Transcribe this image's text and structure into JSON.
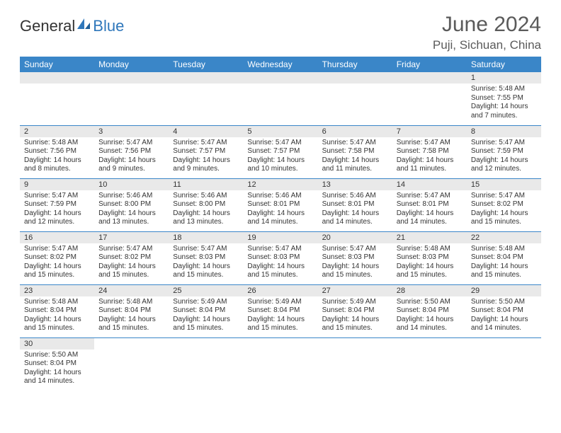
{
  "brand": {
    "part1": "General",
    "part2": "Blue"
  },
  "title": "June 2024",
  "location": "Puji, Sichuan, China",
  "colors": {
    "header_bg": "#3a86c8",
    "row_divider": "#3a86c8",
    "daynum_bg": "#e9e9e9"
  },
  "day_headers": [
    "Sunday",
    "Monday",
    "Tuesday",
    "Wednesday",
    "Thursday",
    "Friday",
    "Saturday"
  ],
  "weeks": [
    [
      {
        "day": "",
        "sunrise": "",
        "sunset": "",
        "daylight": ""
      },
      {
        "day": "",
        "sunrise": "",
        "sunset": "",
        "daylight": ""
      },
      {
        "day": "",
        "sunrise": "",
        "sunset": "",
        "daylight": ""
      },
      {
        "day": "",
        "sunrise": "",
        "sunset": "",
        "daylight": ""
      },
      {
        "day": "",
        "sunrise": "",
        "sunset": "",
        "daylight": ""
      },
      {
        "day": "",
        "sunrise": "",
        "sunset": "",
        "daylight": ""
      },
      {
        "day": "1",
        "sunrise": "Sunrise: 5:48 AM",
        "sunset": "Sunset: 7:55 PM",
        "daylight": "Daylight: 14 hours and 7 minutes."
      }
    ],
    [
      {
        "day": "2",
        "sunrise": "Sunrise: 5:48 AM",
        "sunset": "Sunset: 7:56 PM",
        "daylight": "Daylight: 14 hours and 8 minutes."
      },
      {
        "day": "3",
        "sunrise": "Sunrise: 5:47 AM",
        "sunset": "Sunset: 7:56 PM",
        "daylight": "Daylight: 14 hours and 9 minutes."
      },
      {
        "day": "4",
        "sunrise": "Sunrise: 5:47 AM",
        "sunset": "Sunset: 7:57 PM",
        "daylight": "Daylight: 14 hours and 9 minutes."
      },
      {
        "day": "5",
        "sunrise": "Sunrise: 5:47 AM",
        "sunset": "Sunset: 7:57 PM",
        "daylight": "Daylight: 14 hours and 10 minutes."
      },
      {
        "day": "6",
        "sunrise": "Sunrise: 5:47 AM",
        "sunset": "Sunset: 7:58 PM",
        "daylight": "Daylight: 14 hours and 11 minutes."
      },
      {
        "day": "7",
        "sunrise": "Sunrise: 5:47 AM",
        "sunset": "Sunset: 7:58 PM",
        "daylight": "Daylight: 14 hours and 11 minutes."
      },
      {
        "day": "8",
        "sunrise": "Sunrise: 5:47 AM",
        "sunset": "Sunset: 7:59 PM",
        "daylight": "Daylight: 14 hours and 12 minutes."
      }
    ],
    [
      {
        "day": "9",
        "sunrise": "Sunrise: 5:47 AM",
        "sunset": "Sunset: 7:59 PM",
        "daylight": "Daylight: 14 hours and 12 minutes."
      },
      {
        "day": "10",
        "sunrise": "Sunrise: 5:46 AM",
        "sunset": "Sunset: 8:00 PM",
        "daylight": "Daylight: 14 hours and 13 minutes."
      },
      {
        "day": "11",
        "sunrise": "Sunrise: 5:46 AM",
        "sunset": "Sunset: 8:00 PM",
        "daylight": "Daylight: 14 hours and 13 minutes."
      },
      {
        "day": "12",
        "sunrise": "Sunrise: 5:46 AM",
        "sunset": "Sunset: 8:01 PM",
        "daylight": "Daylight: 14 hours and 14 minutes."
      },
      {
        "day": "13",
        "sunrise": "Sunrise: 5:46 AM",
        "sunset": "Sunset: 8:01 PM",
        "daylight": "Daylight: 14 hours and 14 minutes."
      },
      {
        "day": "14",
        "sunrise": "Sunrise: 5:47 AM",
        "sunset": "Sunset: 8:01 PM",
        "daylight": "Daylight: 14 hours and 14 minutes."
      },
      {
        "day": "15",
        "sunrise": "Sunrise: 5:47 AM",
        "sunset": "Sunset: 8:02 PM",
        "daylight": "Daylight: 14 hours and 15 minutes."
      }
    ],
    [
      {
        "day": "16",
        "sunrise": "Sunrise: 5:47 AM",
        "sunset": "Sunset: 8:02 PM",
        "daylight": "Daylight: 14 hours and 15 minutes."
      },
      {
        "day": "17",
        "sunrise": "Sunrise: 5:47 AM",
        "sunset": "Sunset: 8:02 PM",
        "daylight": "Daylight: 14 hours and 15 minutes."
      },
      {
        "day": "18",
        "sunrise": "Sunrise: 5:47 AM",
        "sunset": "Sunset: 8:03 PM",
        "daylight": "Daylight: 14 hours and 15 minutes."
      },
      {
        "day": "19",
        "sunrise": "Sunrise: 5:47 AM",
        "sunset": "Sunset: 8:03 PM",
        "daylight": "Daylight: 14 hours and 15 minutes."
      },
      {
        "day": "20",
        "sunrise": "Sunrise: 5:47 AM",
        "sunset": "Sunset: 8:03 PM",
        "daylight": "Daylight: 14 hours and 15 minutes."
      },
      {
        "day": "21",
        "sunrise": "Sunrise: 5:48 AM",
        "sunset": "Sunset: 8:03 PM",
        "daylight": "Daylight: 14 hours and 15 minutes."
      },
      {
        "day": "22",
        "sunrise": "Sunrise: 5:48 AM",
        "sunset": "Sunset: 8:04 PM",
        "daylight": "Daylight: 14 hours and 15 minutes."
      }
    ],
    [
      {
        "day": "23",
        "sunrise": "Sunrise: 5:48 AM",
        "sunset": "Sunset: 8:04 PM",
        "daylight": "Daylight: 14 hours and 15 minutes."
      },
      {
        "day": "24",
        "sunrise": "Sunrise: 5:48 AM",
        "sunset": "Sunset: 8:04 PM",
        "daylight": "Daylight: 14 hours and 15 minutes."
      },
      {
        "day": "25",
        "sunrise": "Sunrise: 5:49 AM",
        "sunset": "Sunset: 8:04 PM",
        "daylight": "Daylight: 14 hours and 15 minutes."
      },
      {
        "day": "26",
        "sunrise": "Sunrise: 5:49 AM",
        "sunset": "Sunset: 8:04 PM",
        "daylight": "Daylight: 14 hours and 15 minutes."
      },
      {
        "day": "27",
        "sunrise": "Sunrise: 5:49 AM",
        "sunset": "Sunset: 8:04 PM",
        "daylight": "Daylight: 14 hours and 15 minutes."
      },
      {
        "day": "28",
        "sunrise": "Sunrise: 5:50 AM",
        "sunset": "Sunset: 8:04 PM",
        "daylight": "Daylight: 14 hours and 14 minutes."
      },
      {
        "day": "29",
        "sunrise": "Sunrise: 5:50 AM",
        "sunset": "Sunset: 8:04 PM",
        "daylight": "Daylight: 14 hours and 14 minutes."
      }
    ],
    [
      {
        "day": "30",
        "sunrise": "Sunrise: 5:50 AM",
        "sunset": "Sunset: 8:04 PM",
        "daylight": "Daylight: 14 hours and 14 minutes."
      },
      {
        "day": "",
        "sunrise": "",
        "sunset": "",
        "daylight": ""
      },
      {
        "day": "",
        "sunrise": "",
        "sunset": "",
        "daylight": ""
      },
      {
        "day": "",
        "sunrise": "",
        "sunset": "",
        "daylight": ""
      },
      {
        "day": "",
        "sunrise": "",
        "sunset": "",
        "daylight": ""
      },
      {
        "day": "",
        "sunrise": "",
        "sunset": "",
        "daylight": ""
      },
      {
        "day": "",
        "sunrise": "",
        "sunset": "",
        "daylight": ""
      }
    ]
  ]
}
